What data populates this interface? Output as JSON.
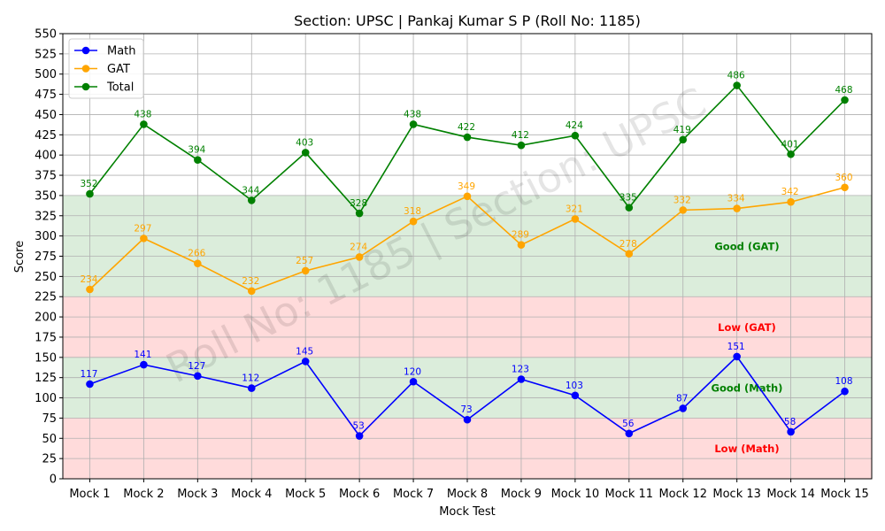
{
  "chart_data": {
    "type": "line",
    "title": "Section: UPSC | Pankaj Kumar S P (Roll No: 1185)",
    "xlabel": "Mock Test",
    "ylabel": "Score",
    "categories": [
      "Mock 1",
      "Mock 2",
      "Mock 3",
      "Mock 4",
      "Mock 5",
      "Mock 6",
      "Mock 7",
      "Mock 8",
      "Mock 9",
      "Mock 10",
      "Mock 11",
      "Mock 12",
      "Mock 13",
      "Mock 14",
      "Mock 15"
    ],
    "ylim": [
      0,
      550
    ],
    "yticks": [
      0,
      25,
      50,
      75,
      100,
      125,
      150,
      175,
      200,
      225,
      250,
      275,
      300,
      325,
      350,
      375,
      400,
      425,
      450,
      475,
      500,
      525,
      550
    ],
    "grid": true,
    "legend_position": "top-left",
    "series": [
      {
        "name": "Math",
        "color": "#0000ff",
        "values": [
          117,
          141,
          127,
          112,
          145,
          53,
          120,
          73,
          123,
          103,
          56,
          87,
          151,
          58,
          108
        ]
      },
      {
        "name": "GAT",
        "color": "#ffa500",
        "values": [
          234,
          297,
          266,
          232,
          257,
          274,
          318,
          349,
          289,
          321,
          278,
          332,
          334,
          342,
          360
        ]
      },
      {
        "name": "Total",
        "color": "#008000",
        "values": [
          352,
          438,
          394,
          344,
          403,
          328,
          438,
          422,
          412,
          424,
          335,
          419,
          486,
          401,
          468
        ]
      }
    ],
    "bands": [
      {
        "from": 0,
        "to": 75,
        "color": "#ff9999",
        "label": "Low (Math)",
        "label_color": "#ff0000",
        "label_y": 37
      },
      {
        "from": 75,
        "to": 150,
        "color": "#99cc99",
        "label": "Good (Math)",
        "label_color": "#008000",
        "label_y": 112
      },
      {
        "from": 150,
        "to": 225,
        "color": "#ff9999",
        "label": "Low (GAT)",
        "label_color": "#ff0000",
        "label_y": 187
      },
      {
        "from": 225,
        "to": 350,
        "color": "#99cc99",
        "label": "Good (GAT)",
        "label_color": "#008000",
        "label_y": 287
      }
    ],
    "watermark": "Roll No: 1185 | Section: UPSC"
  }
}
